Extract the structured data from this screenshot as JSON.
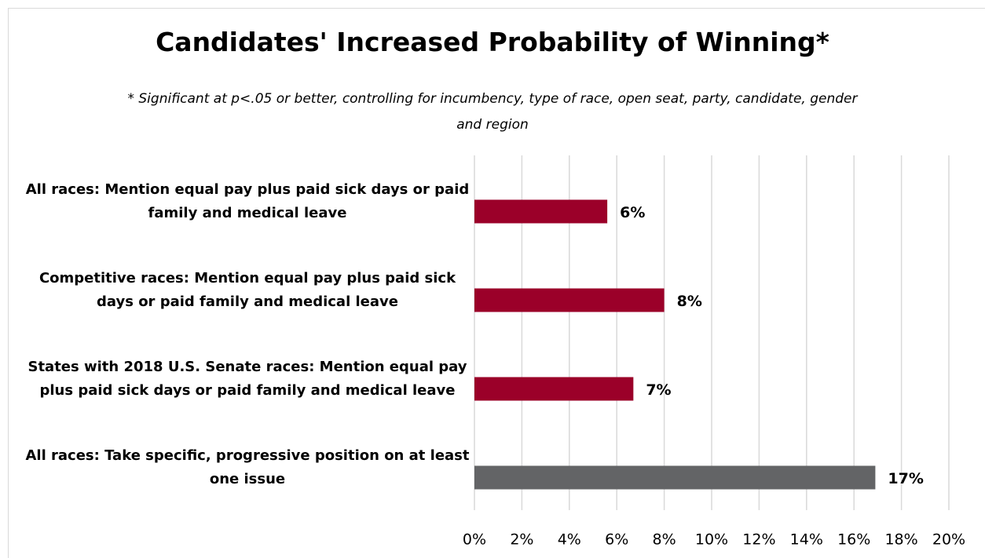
{
  "chart_data": {
    "type": "bar",
    "orientation": "horizontal",
    "title": "Candidates' Increased Probability of Winning*",
    "subtitle": "* Significant at p<.05 or better, controlling for incumbency, type of race, open seat, party, candidate, gender and region",
    "categories": [
      "All races: Mention equal pay plus paid sick days or paid family and medical leave",
      "Competitive races: Mention equal pay plus paid sick days or paid family and medical leave",
      "States with 2018 U.S. Senate races: Mention equal pay plus paid sick days or paid family and medical leave",
      "All races: Take specific, progressive position on at least one issue"
    ],
    "values": [
      5.6,
      8.0,
      6.7,
      16.9
    ],
    "value_labels": [
      "6%",
      "8%",
      "7%",
      "17%"
    ],
    "colors": [
      "#9b0029",
      "#9b0029",
      "#9b0029",
      "#636466"
    ],
    "xlim": [
      0,
      20
    ],
    "xticks": [
      {
        "value": 0,
        "label": "0%"
      },
      {
        "value": 2,
        "label": "2%"
      },
      {
        "value": 4,
        "label": "4%"
      },
      {
        "value": 6,
        "label": "6%"
      },
      {
        "value": 8,
        "label": "8%"
      },
      {
        "value": 10,
        "label": "10%"
      },
      {
        "value": 12,
        "label": "12%"
      },
      {
        "value": 14,
        "label": "14%"
      },
      {
        "value": 16,
        "label": "16%"
      },
      {
        "value": 18,
        "label": "18%"
      },
      {
        "value": 20,
        "label": "20%"
      }
    ],
    "grid": true
  }
}
